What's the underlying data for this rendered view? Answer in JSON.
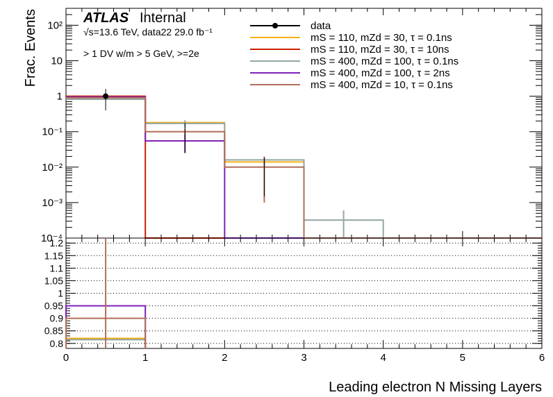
{
  "chart_data": [
    {
      "type": "histogram",
      "ylabel": "Frac. Events",
      "yscale": "log",
      "ylim": [
        0.0001,
        300
      ],
      "xlim": [
        0,
        6
      ],
      "bin_edges": [
        0,
        1,
        2,
        3,
        4,
        5,
        6
      ],
      "atlas_label": "ATLAS",
      "atlas_suffix": "Internal",
      "energy_label": "√s=13.6 TeV, data22 29.0 fb⁻¹",
      "selection_label": "> 1 DV w/m > 5 GeV, >=2e",
      "y_tick_labels": [
        "10²",
        "10",
        "1",
        "10⁻¹",
        "10⁻²",
        "10⁻³",
        "10⁻⁴"
      ],
      "data": {
        "name": "data",
        "values": [
          1.0,
          0.1,
          0.01,
          null,
          null,
          null
        ],
        "errors_low": [
          0.6,
          0.075,
          0.0085,
          0,
          0,
          0
        ],
        "errors_high": [
          0.6,
          0.075,
          0.0085,
          0,
          0,
          0
        ]
      },
      "legend": [
        {
          "name": "data",
          "color": "#000000"
        },
        {
          "name": "mS = 110, mZd = 30, τ = 0.1ns",
          "color": "#f5b116"
        },
        {
          "name": "mS = 110, mZd = 30, τ = 10ns",
          "color": "#cc2200"
        },
        {
          "name": "mS = 400, mZd = 100, τ = 0.1ns",
          "color": "#93a6a3"
        },
        {
          "name": "mS = 400, mZd = 100, τ = 2ns",
          "color": "#7e22b8"
        },
        {
          "name": "mS = 400, mZd = 10, τ = 0.1ns",
          "color": "#b06e58"
        }
      ],
      "series": [
        {
          "name": "mS = 110, mZd = 30, τ = 0.1ns",
          "color": "#f5b116",
          "values": [
            0.82,
            0.18,
            0.014,
            0,
            0,
            0
          ]
        },
        {
          "name": "mS = 110, mZd = 30, τ = 10ns",
          "color": "#cc2200",
          "values": [
            1.0,
            0,
            0,
            0,
            0,
            0
          ]
        },
        {
          "name": "mS = 400, mZd = 100, τ = 0.1ns",
          "color": "#93a6a3",
          "values": [
            0.82,
            0.17,
            0.016,
            0.00032,
            0,
            0
          ],
          "errors": [
            0,
            0.04,
            0.004,
            0.00028,
            0,
            0
          ]
        },
        {
          "name": "mS = 400, mZd = 100, τ = 2ns",
          "color": "#7e22b8",
          "values": [
            0.95,
            0.055,
            0,
            0,
            0,
            0
          ],
          "errors": [
            0,
            0.03,
            0,
            0,
            0,
            0
          ]
        },
        {
          "name": "mS = 400, mZd = 10, τ = 0.1ns",
          "color": "#b06e58",
          "values": [
            0.9,
            0.1,
            0.01,
            0,
            0,
            0
          ],
          "errors": [
            0,
            0.02,
            0.009,
            0,
            0,
            0
          ]
        }
      ]
    },
    {
      "type": "histogram-ratio",
      "xlabel": "Leading electron N Missing Layers",
      "xlim": [
        0,
        6
      ],
      "ylim": [
        0.78,
        1.22
      ],
      "y_ticks": [
        0.8,
        0.85,
        0.9,
        0.95,
        1,
        1.05,
        1.1,
        1.15,
        1.2
      ],
      "y_tick_labels": [
        "0.8",
        "0.85",
        "0.9",
        "0.95",
        "1",
        "1.05",
        "1.1",
        "1.15",
        "1.2"
      ],
      "x_ticks": [
        0,
        1,
        2,
        3,
        4,
        5,
        6
      ],
      "x_tick_labels": [
        "0",
        "1",
        "2",
        "3",
        "4",
        "5",
        "6"
      ],
      "grid": true,
      "series": [
        {
          "name": "mS = 110, mZd = 30, τ = 0.1ns",
          "color": "#f5b116",
          "values": [
            0.82,
            null,
            null,
            null,
            null,
            null
          ]
        },
        {
          "name": "mS = 400, mZd = 100, τ = 0.1ns",
          "color": "#93a6a3",
          "values": [
            0.815,
            null,
            null,
            null,
            null,
            null
          ]
        },
        {
          "name": "mS = 400, mZd = 100, τ = 2ns",
          "color": "#7e22b8",
          "values": [
            0.95,
            null,
            null,
            null,
            null,
            null
          ]
        },
        {
          "name": "mS = 400, mZd = 10, τ = 0.1ns",
          "color": "#b06e58",
          "values": [
            0.9,
            null,
            null,
            null,
            null,
            null
          ],
          "errors": [
            0.6,
            0,
            0,
            0,
            0,
            0
          ]
        }
      ]
    }
  ]
}
